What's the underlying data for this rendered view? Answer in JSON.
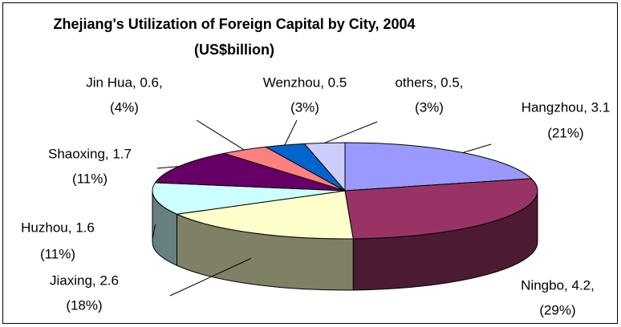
{
  "chart_data": {
    "type": "pie3d",
    "title": "Zhejiang's Utilization of Foreign Capital by City, 2004",
    "subtitle": "(US$billion)",
    "values": [
      3.1,
      4.2,
      2.6,
      1.6,
      1.7,
      0.6,
      0.5,
      0.5
    ],
    "value_labels": [
      "Hangzhou, 3.1",
      "Ningbo, 4.2,",
      "Jiaxing, 2.6",
      "Huzhou, 1.6",
      "Shaoxing, 1.7",
      "Jin Hua, 0.6,",
      "Wenzhou, 0.5",
      "others, 0.5,"
    ],
    "percents": [
      21,
      29,
      18,
      11,
      11,
      4,
      3,
      3
    ],
    "percent_labels": [
      "(21%)",
      "(29%)",
      "(18%)",
      "(11%)",
      "(11%)",
      "(4%)",
      "(3%)",
      "(3%)"
    ],
    "colors": [
      "#9999ff",
      "#993366",
      "#ffffcc",
      "#ccffff",
      "#660066",
      "#ff8080",
      "#0066cc",
      "#ccccff"
    ]
  }
}
